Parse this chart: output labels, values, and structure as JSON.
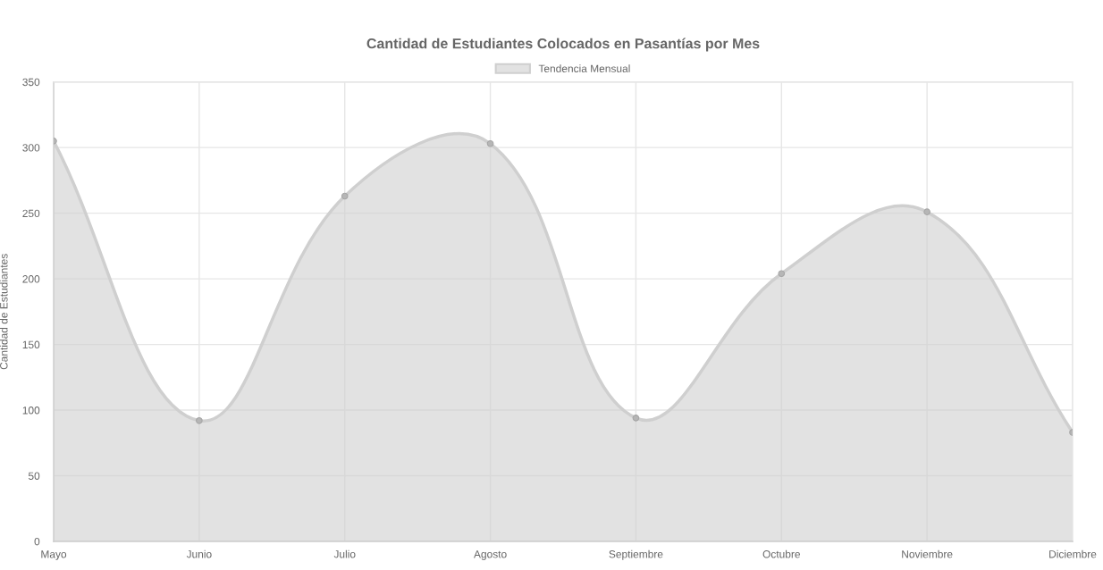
{
  "chart_data": {
    "type": "area",
    "title": "Cantidad de Estudiantes Colocados en Pasantías por Mes",
    "ylabel": "Cantidad de Estudiantes",
    "categories": [
      "Mayo",
      "Junio",
      "Julio",
      "Agosto",
      "Septiembre",
      "Octubre",
      "Noviembre",
      "Diciembre"
    ],
    "series": [
      {
        "name": "Tendencia Mensual",
        "color": "#cfcfcf",
        "values": [
          305,
          92,
          263,
          303,
          94,
          204,
          251,
          83
        ]
      }
    ],
    "ylim": [
      0,
      350
    ],
    "yticks": [
      0,
      50,
      100,
      150,
      200,
      250,
      300,
      350
    ],
    "grid": true,
    "legend": "top",
    "marker": "circle"
  }
}
